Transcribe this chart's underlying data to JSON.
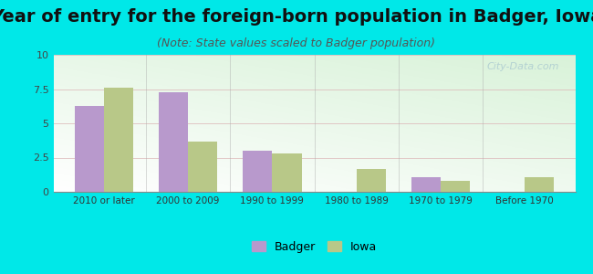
{
  "title": "Year of entry for the foreign-born population in Badger, Iowa",
  "subtitle": "(Note: State values scaled to Badger population)",
  "categories": [
    "2010 or later",
    "2000 to 2009",
    "1990 to 1999",
    "1980 to 1989",
    "1970 to 1979",
    "Before 1970"
  ],
  "badger_values": [
    6.3,
    7.3,
    3.0,
    0.0,
    1.1,
    0.0
  ],
  "iowa_values": [
    7.6,
    3.7,
    2.8,
    1.7,
    0.8,
    1.1
  ],
  "badger_color": "#b899cc",
  "iowa_color": "#b8c888",
  "ylim": [
    0,
    10
  ],
  "yticks": [
    0,
    2.5,
    5,
    7.5,
    10
  ],
  "background_color": "#00e8e8",
  "plot_bg_colors": [
    "#ffffff",
    "#d8f0d8"
  ],
  "title_fontsize": 14,
  "subtitle_fontsize": 9,
  "bar_width": 0.35,
  "legend_labels": [
    "Badger",
    "Iowa"
  ],
  "watermark": "City-Data.com"
}
